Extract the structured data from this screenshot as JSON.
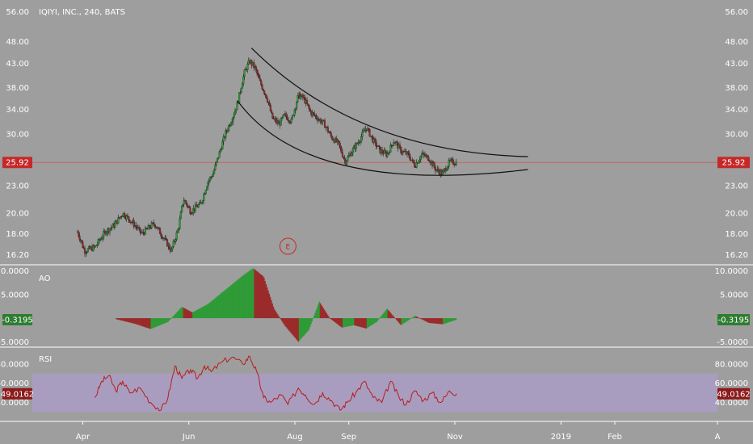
{
  "colors": {
    "background": "#9e9e9e",
    "separator": "#ffffff",
    "up": "#2e9b37",
    "down": "#9b2b2b",
    "price_line": "#d9534f",
    "price_badge": "#c62828",
    "ao_badge": "#2e7d32",
    "rsi_line": "#b71c1c",
    "rsi_band": "#b39ddb",
    "channel": "#111111"
  },
  "chart_data": [
    {
      "type": "candlestick",
      "title": "IQIYI, INC., 240, BATS",
      "y_ticks": [
        "56.00",
        "48.00",
        "43.00",
        "38.00",
        "34.00",
        "30.00",
        "23.00",
        "20.00",
        "18.00",
        "16.20"
      ],
      "ylim": [
        15.5,
        57
      ],
      "y_scale": "log",
      "current_price": "25.92",
      "current_value": 25.92,
      "event_marker": "E",
      "event_marker_date": "2018-07-28",
      "x_ticks": [
        "Apr",
        "Jun",
        "Aug",
        "Sep",
        "Nov",
        "2019",
        "Feb",
        "A"
      ],
      "x_tick_dates": [
        "2018-04-01",
        "2018-06-01",
        "2018-08-01",
        "2018-09-01",
        "2018-11-01",
        "2019-01-01",
        "2019-02-01",
        "2019-04-01"
      ],
      "x_range": [
        "2018-03-03",
        "2019-04-01"
      ],
      "data": [
        {
          "date": "2018-03-29",
          "price": 18.2
        },
        {
          "date": "2018-04-02",
          "price": 16.5
        },
        {
          "date": "2018-04-08",
          "price": 16.8
        },
        {
          "date": "2018-04-14",
          "price": 18.2
        },
        {
          "date": "2018-04-19",
          "price": 18.8
        },
        {
          "date": "2018-04-24",
          "price": 20.0
        },
        {
          "date": "2018-04-30",
          "price": 19.0
        },
        {
          "date": "2018-05-05",
          "price": 18.0
        },
        {
          "date": "2018-05-12",
          "price": 19.0
        },
        {
          "date": "2018-05-18",
          "price": 17.5
        },
        {
          "date": "2018-05-22",
          "price": 16.5
        },
        {
          "date": "2018-05-26",
          "price": 18.5
        },
        {
          "date": "2018-05-29",
          "price": 21.5
        },
        {
          "date": "2018-06-02",
          "price": 20.2
        },
        {
          "date": "2018-06-08",
          "price": 21.0
        },
        {
          "date": "2018-06-12",
          "price": 23.5
        },
        {
          "date": "2018-06-15",
          "price": 24.5
        },
        {
          "date": "2018-06-19",
          "price": 27.5
        },
        {
          "date": "2018-06-22",
          "price": 30.0
        },
        {
          "date": "2018-06-26",
          "price": 32.5
        },
        {
          "date": "2018-06-29",
          "price": 35.0
        },
        {
          "date": "2018-07-03",
          "price": 41.0
        },
        {
          "date": "2018-07-06",
          "price": 43.5
        },
        {
          "date": "2018-07-09",
          "price": 42.0
        },
        {
          "date": "2018-07-12",
          "price": 39.0
        },
        {
          "date": "2018-07-16",
          "price": 36.0
        },
        {
          "date": "2018-07-19",
          "price": 32.5
        },
        {
          "date": "2018-07-23",
          "price": 31.5
        },
        {
          "date": "2018-07-26",
          "price": 33.0
        },
        {
          "date": "2018-07-30",
          "price": 32.0
        },
        {
          "date": "2018-08-03",
          "price": 36.5
        },
        {
          "date": "2018-08-06",
          "price": 36.0
        },
        {
          "date": "2018-08-10",
          "price": 33.5
        },
        {
          "date": "2018-08-14",
          "price": 32.5
        },
        {
          "date": "2018-08-18",
          "price": 31.5
        },
        {
          "date": "2018-08-22",
          "price": 29.5
        },
        {
          "date": "2018-08-26",
          "price": 28.5
        },
        {
          "date": "2018-08-30",
          "price": 26.0
        },
        {
          "date": "2018-09-03",
          "price": 27.5
        },
        {
          "date": "2018-09-07",
          "price": 29.0
        },
        {
          "date": "2018-09-11",
          "price": 31.0
        },
        {
          "date": "2018-09-15",
          "price": 29.0
        },
        {
          "date": "2018-09-19",
          "price": 27.5
        },
        {
          "date": "2018-09-23",
          "price": 27.0
        },
        {
          "date": "2018-09-27",
          "price": 29.0
        },
        {
          "date": "2018-10-01",
          "price": 27.5
        },
        {
          "date": "2018-10-05",
          "price": 27.0
        },
        {
          "date": "2018-10-09",
          "price": 25.5
        },
        {
          "date": "2018-10-13",
          "price": 27.0
        },
        {
          "date": "2018-10-17",
          "price": 26.5
        },
        {
          "date": "2018-10-21",
          "price": 25.0
        },
        {
          "date": "2018-10-25",
          "price": 24.5
        },
        {
          "date": "2018-10-29",
          "price": 26.0
        },
        {
          "date": "2018-11-02",
          "price": 25.92
        }
      ],
      "channel_upper": [
        {
          "date": "2018-07-07",
          "price": 46.5
        },
        {
          "date": "2018-09-15",
          "price": 31.0
        },
        {
          "date": "2018-12-13",
          "price": 26.7
        }
      ],
      "channel_lower": [
        {
          "date": "2018-06-29",
          "price": 35.5
        },
        {
          "date": "2018-08-30",
          "price": 25.5
        },
        {
          "date": "2018-12-13",
          "price": 25.0
        }
      ]
    },
    {
      "type": "bar",
      "name": "AO",
      "y_ticks": [
        "10.0000",
        "5.0000",
        "-5.0000"
      ],
      "current_value": "-0.3195",
      "ylim": [
        -5.8,
        10.8
      ],
      "x_range": [
        "2018-03-03",
        "2019-04-01"
      ],
      "data": [
        {
          "date": "2018-04-20",
          "value": -0.2
        },
        {
          "date": "2018-05-01",
          "value": -1.2
        },
        {
          "date": "2018-05-10",
          "value": -2.3
        },
        {
          "date": "2018-05-20",
          "value": -0.8
        },
        {
          "date": "2018-05-28",
          "value": 2.4
        },
        {
          "date": "2018-06-03",
          "value": 1.2
        },
        {
          "date": "2018-06-12",
          "value": 3.0
        },
        {
          "date": "2018-06-22",
          "value": 6.0
        },
        {
          "date": "2018-07-02",
          "value": 9.0
        },
        {
          "date": "2018-07-08",
          "value": 10.6
        },
        {
          "date": "2018-07-14",
          "value": 8.8
        },
        {
          "date": "2018-07-20",
          "value": 2.0
        },
        {
          "date": "2018-07-26",
          "value": -1.5
        },
        {
          "date": "2018-08-03",
          "value": -5.0
        },
        {
          "date": "2018-08-09",
          "value": -2.5
        },
        {
          "date": "2018-08-15",
          "value": 3.5
        },
        {
          "date": "2018-08-21",
          "value": 0.0
        },
        {
          "date": "2018-08-28",
          "value": -2.0
        },
        {
          "date": "2018-09-04",
          "value": -1.5
        },
        {
          "date": "2018-09-11",
          "value": -2.2
        },
        {
          "date": "2018-09-17",
          "value": -0.8
        },
        {
          "date": "2018-09-23",
          "value": 2.0
        },
        {
          "date": "2018-10-01",
          "value": -1.5
        },
        {
          "date": "2018-10-09",
          "value": 0.5
        },
        {
          "date": "2018-10-17",
          "value": -1.0
        },
        {
          "date": "2018-10-25",
          "value": -1.3
        },
        {
          "date": "2018-11-02",
          "value": -0.3195
        }
      ]
    },
    {
      "type": "line",
      "name": "RSI",
      "y_ticks": [
        "80.0000",
        "60.0000",
        "40.0000"
      ],
      "current_value": "49.0162",
      "band": [
        30,
        70
      ],
      "ylim": [
        22,
        95
      ],
      "x_range": [
        "2018-03-03",
        "2019-04-01"
      ],
      "data": [
        {
          "date": "2018-04-08",
          "value": 45
        },
        {
          "date": "2018-04-12",
          "value": 62
        },
        {
          "date": "2018-04-16",
          "value": 68
        },
        {
          "date": "2018-04-20",
          "value": 52
        },
        {
          "date": "2018-04-24",
          "value": 62
        },
        {
          "date": "2018-04-28",
          "value": 50
        },
        {
          "date": "2018-05-04",
          "value": 55
        },
        {
          "date": "2018-05-10",
          "value": 40
        },
        {
          "date": "2018-05-16",
          "value": 32
        },
        {
          "date": "2018-05-20",
          "value": 45
        },
        {
          "date": "2018-05-24",
          "value": 78
        },
        {
          "date": "2018-05-28",
          "value": 65
        },
        {
          "date": "2018-06-02",
          "value": 74
        },
        {
          "date": "2018-06-06",
          "value": 65
        },
        {
          "date": "2018-06-10",
          "value": 78
        },
        {
          "date": "2018-06-14",
          "value": 72
        },
        {
          "date": "2018-06-20",
          "value": 82
        },
        {
          "date": "2018-06-26",
          "value": 87
        },
        {
          "date": "2018-07-02",
          "value": 80
        },
        {
          "date": "2018-07-06",
          "value": 88
        },
        {
          "date": "2018-07-10",
          "value": 72
        },
        {
          "date": "2018-07-14",
          "value": 45
        },
        {
          "date": "2018-07-18",
          "value": 40
        },
        {
          "date": "2018-07-24",
          "value": 48
        },
        {
          "date": "2018-07-28",
          "value": 38
        },
        {
          "date": "2018-08-03",
          "value": 55
        },
        {
          "date": "2018-08-07",
          "value": 48
        },
        {
          "date": "2018-08-12",
          "value": 38
        },
        {
          "date": "2018-08-17",
          "value": 50
        },
        {
          "date": "2018-08-22",
          "value": 42
        },
        {
          "date": "2018-08-27",
          "value": 32
        },
        {
          "date": "2018-08-31",
          "value": 40
        },
        {
          "date": "2018-09-05",
          "value": 50
        },
        {
          "date": "2018-09-10",
          "value": 62
        },
        {
          "date": "2018-09-15",
          "value": 45
        },
        {
          "date": "2018-09-20",
          "value": 40
        },
        {
          "date": "2018-09-25",
          "value": 62
        },
        {
          "date": "2018-09-30",
          "value": 45
        },
        {
          "date": "2018-10-04",
          "value": 38
        },
        {
          "date": "2018-10-09",
          "value": 52
        },
        {
          "date": "2018-10-14",
          "value": 42
        },
        {
          "date": "2018-10-19",
          "value": 50
        },
        {
          "date": "2018-10-24",
          "value": 40
        },
        {
          "date": "2018-10-29",
          "value": 52
        },
        {
          "date": "2018-11-02",
          "value": 49
        }
      ]
    }
  ]
}
